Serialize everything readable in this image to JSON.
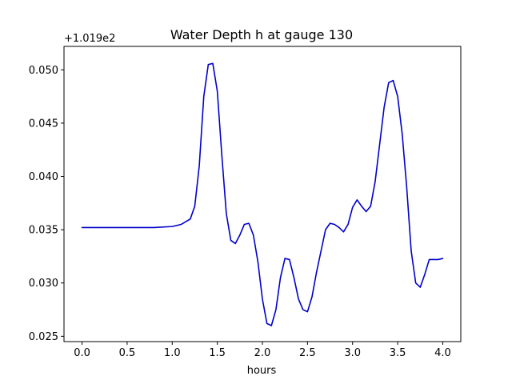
{
  "chart_data": {
    "type": "line",
    "title": "Water Depth h at gauge 130",
    "xlabel": "hours",
    "ylabel": "",
    "y_offset_label": "+1.019e2",
    "xlim": [
      -0.2,
      4.2
    ],
    "ylim": [
      0.0245,
      0.0522
    ],
    "xticks": [
      0.0,
      0.5,
      1.0,
      1.5,
      2.0,
      2.5,
      3.0,
      3.5,
      4.0
    ],
    "xtick_labels": [
      "0.0",
      "0.5",
      "1.0",
      "1.5",
      "2.0",
      "2.5",
      "3.0",
      "3.5",
      "4.0"
    ],
    "yticks": [
      0.025,
      0.03,
      0.035,
      0.04,
      0.045,
      0.05
    ],
    "ytick_labels": [
      "0.025",
      "0.030",
      "0.035",
      "0.040",
      "0.045",
      "0.050"
    ],
    "grid": false,
    "series": [
      {
        "color": "#0000cc",
        "x": [
          0.0,
          0.2,
          0.5,
          0.8,
          1.0,
          1.1,
          1.2,
          1.25,
          1.3,
          1.35,
          1.4,
          1.45,
          1.5,
          1.55,
          1.6,
          1.65,
          1.7,
          1.75,
          1.8,
          1.85,
          1.9,
          1.95,
          2.0,
          2.05,
          2.1,
          2.15,
          2.2,
          2.25,
          2.3,
          2.35,
          2.4,
          2.45,
          2.5,
          2.55,
          2.6,
          2.65,
          2.7,
          2.75,
          2.8,
          2.85,
          2.9,
          2.95,
          3.0,
          3.05,
          3.1,
          3.15,
          3.2,
          3.25,
          3.3,
          3.35,
          3.4,
          3.45,
          3.5,
          3.55,
          3.6,
          3.65,
          3.7,
          3.75,
          3.8,
          3.85,
          3.9,
          3.95,
          4.0
        ],
        "y": [
          0.0352,
          0.0352,
          0.0352,
          0.0352,
          0.0353,
          0.0355,
          0.036,
          0.0372,
          0.041,
          0.0475,
          0.0505,
          0.0506,
          0.048,
          0.042,
          0.0365,
          0.034,
          0.0337,
          0.0345,
          0.0355,
          0.0356,
          0.0345,
          0.032,
          0.0285,
          0.0262,
          0.026,
          0.0275,
          0.0305,
          0.0323,
          0.0322,
          0.0305,
          0.0285,
          0.0275,
          0.0273,
          0.0287,
          0.031,
          0.033,
          0.035,
          0.0356,
          0.0355,
          0.0352,
          0.0348,
          0.0355,
          0.0371,
          0.0378,
          0.0372,
          0.0367,
          0.0372,
          0.0395,
          0.043,
          0.0465,
          0.0488,
          0.049,
          0.0475,
          0.044,
          0.039,
          0.033,
          0.03,
          0.0296,
          0.0308,
          0.0322,
          0.0322,
          0.0322,
          0.0323
        ]
      }
    ]
  }
}
